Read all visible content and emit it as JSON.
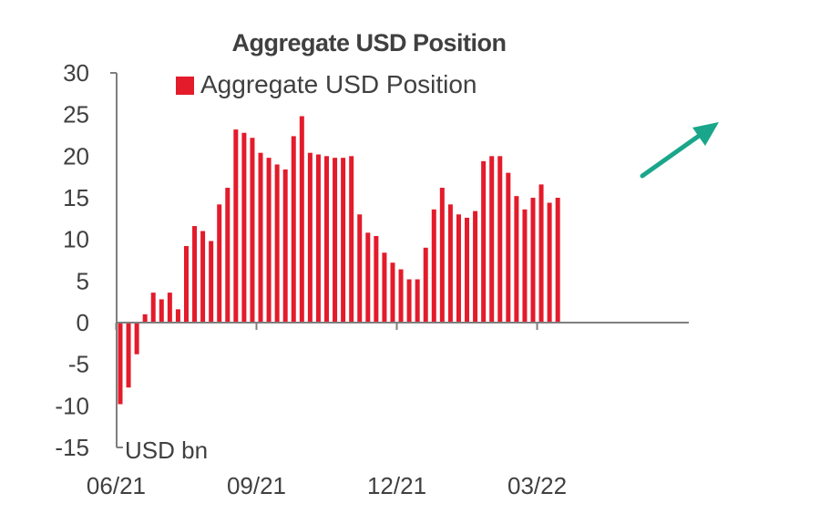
{
  "chart_data": {
    "type": "bar",
    "title": "Aggregate USD Position",
    "unit_label": "USD bn",
    "ylim": [
      -15,
      30
    ],
    "yticks": [
      30,
      25,
      20,
      15,
      10,
      5,
      0,
      -5,
      -10,
      -15
    ],
    "xtick_labels": [
      "06/21",
      "09/21",
      "12/21",
      "03/22"
    ],
    "xtick_bar_index": [
      0,
      17,
      34,
      51
    ],
    "series": [
      {
        "name": "Aggregate USD Position",
        "color": "#e31b2b",
        "values": [
          -9.8,
          -7.8,
          -3.8,
          1.0,
          3.6,
          2.8,
          3.6,
          1.6,
          9.2,
          11.6,
          11.0,
          9.8,
          14.2,
          16.2,
          23.2,
          22.8,
          22.2,
          20.4,
          19.8,
          19.0,
          18.4,
          22.4,
          24.8,
          20.4,
          20.2,
          20.0,
          19.8,
          19.8,
          20.0,
          13.0,
          10.8,
          10.4,
          8.4,
          7.2,
          6.4,
          5.2,
          5.2,
          9.0,
          13.6,
          16.2,
          14.2,
          13.0,
          12.6,
          13.4,
          19.4,
          20.0,
          20.0,
          18.0,
          15.2,
          13.6,
          15.0,
          16.6,
          14.4,
          15.0
        ]
      }
    ],
    "arrow_color": "#1aa68a",
    "grid": false,
    "legend_position": "top-center"
  }
}
